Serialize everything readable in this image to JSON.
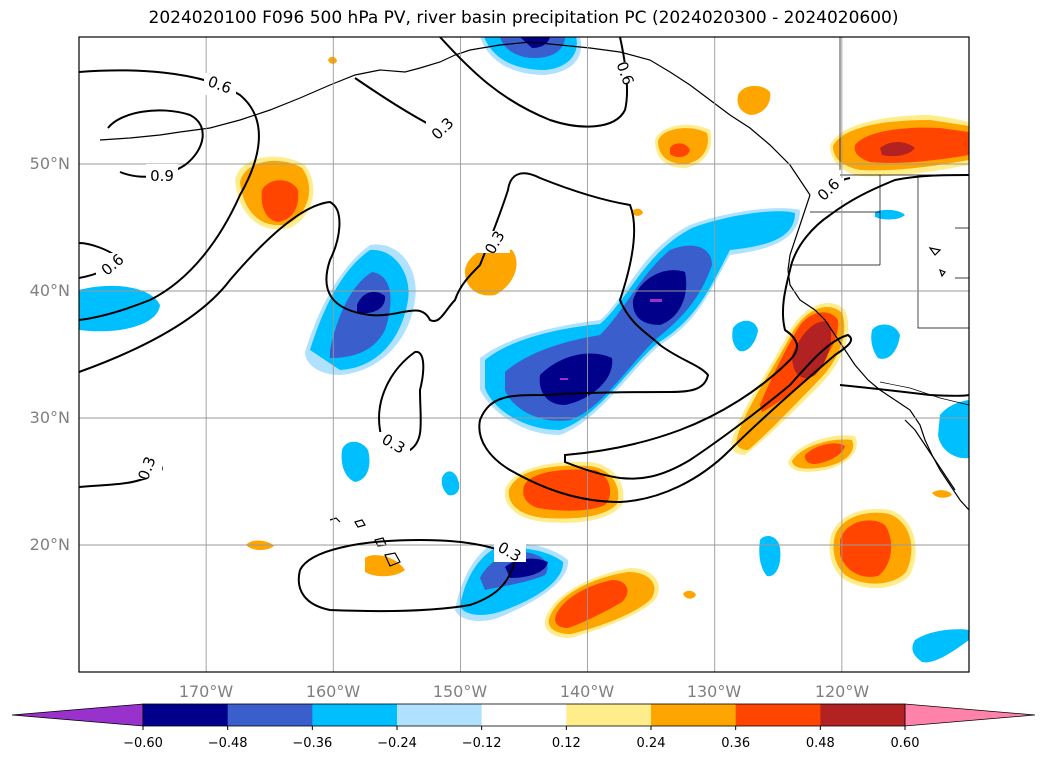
{
  "title": "2024020100 F096 500 hPa PV, river basin precipitation PC (2024020300 - 2024020600)",
  "map": {
    "lon_range": [
      -180,
      -110
    ],
    "lat_range": [
      10,
      60
    ],
    "lon_ticks": [
      {
        "value": -170,
        "label": "170°W"
      },
      {
        "value": -160,
        "label": "160°W"
      },
      {
        "value": -150,
        "label": "150°W"
      },
      {
        "value": -140,
        "label": "140°W"
      },
      {
        "value": -130,
        "label": "130°W"
      },
      {
        "value": -120,
        "label": "120°W"
      }
    ],
    "lat_ticks": [
      {
        "value": 20,
        "label": "20°N"
      },
      {
        "value": 30,
        "label": "30°N"
      },
      {
        "value": 40,
        "label": "40°N"
      },
      {
        "value": 50,
        "label": "50°N"
      }
    ],
    "grid": true,
    "contour_labels": [
      "0.6",
      "0.9",
      "0.6",
      "0.3",
      "0.3",
      "0.3",
      "0.6",
      "0.3",
      "0.3",
      "0.6"
    ]
  },
  "colorbar": {
    "levels": [
      "−0.60",
      "−0.48",
      "−0.36",
      "−0.24",
      "−0.12",
      "0.12",
      "0.24",
      "0.36",
      "0.48",
      "0.60"
    ],
    "colors": [
      "#9932cc",
      "#00008b",
      "#3a5fcd",
      "#00bfff",
      "#b0e2ff",
      "#ffffff",
      "#ffec8b",
      "#ffa500",
      "#ff4500",
      "#b22222",
      "#ff82ab"
    ],
    "extend": "both"
  }
}
